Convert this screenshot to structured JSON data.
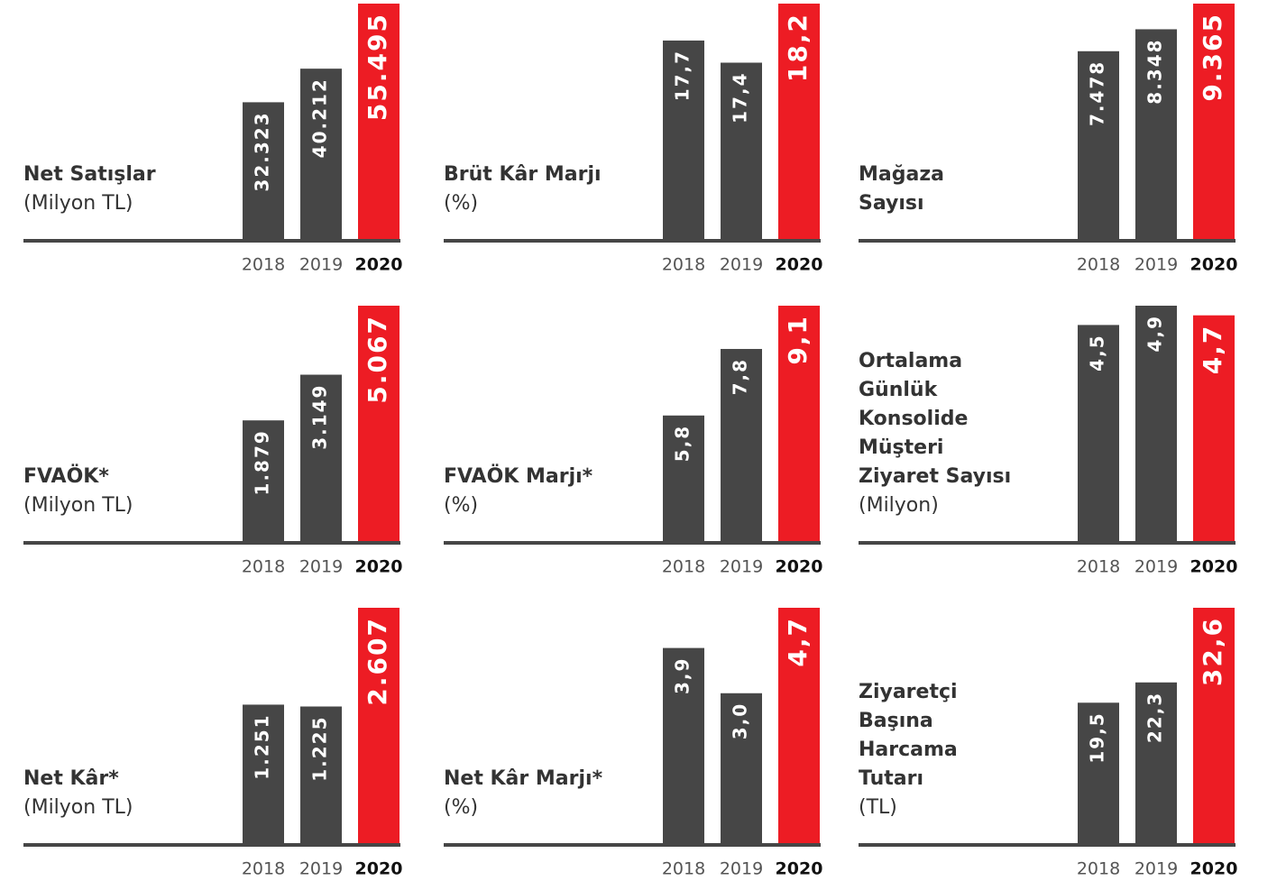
{
  "chart_data": [
    {
      "type": "bar",
      "title": [
        "Net Satışlar"
      ],
      "subtitle": "(Milyon TL)",
      "categories": [
        "2018",
        "2019",
        "2020"
      ],
      "values": [
        32323,
        40212,
        55495
      ],
      "value_labels": [
        "32.323",
        "40.212",
        "55.495"
      ],
      "colors": [
        "#464646",
        "#464646",
        "#ed1c24"
      ],
      "ylim": [
        0,
        55495
      ]
    },
    {
      "type": "bar",
      "title": [
        "Brüt Kâr Marjı"
      ],
      "subtitle": "(%)",
      "categories": [
        "2018",
        "2019",
        "2020"
      ],
      "values": [
        17.7,
        17.4,
        18.2
      ],
      "value_labels": [
        "17,7",
        "17,4",
        "18,2"
      ],
      "colors": [
        "#464646",
        "#464646",
        "#ed1c24"
      ],
      "ylim": [
        15,
        18.2
      ]
    },
    {
      "type": "bar",
      "title": [
        "Mağaza",
        "Sayısı"
      ],
      "categories": [
        "2018",
        "2019",
        "2020"
      ],
      "values": [
        7478,
        8348,
        9365
      ],
      "value_labels": [
        "7.478",
        "8.348",
        "9.365"
      ],
      "colors": [
        "#464646",
        "#464646",
        "#ed1c24"
      ],
      "ylim": [
        0,
        9365
      ]
    },
    {
      "type": "bar",
      "title": [
        "FVAÖK*"
      ],
      "subtitle": "(Milyon TL)",
      "categories": [
        "2018",
        "2019",
        "2020"
      ],
      "values": [
        1879,
        3149,
        5067
      ],
      "value_labels": [
        "1.879",
        "3.149",
        "5.067"
      ],
      "colors": [
        "#464646",
        "#464646",
        "#ed1c24"
      ],
      "ylim": [
        -1500,
        5067
      ]
    },
    {
      "type": "bar",
      "title": [
        "FVAÖK Marjı*"
      ],
      "subtitle": "(%)",
      "categories": [
        "2018",
        "2019",
        "2020"
      ],
      "values": [
        5.8,
        7.8,
        9.1
      ],
      "value_labels": [
        "5,8",
        "7,8",
        "9,1"
      ],
      "colors": [
        "#464646",
        "#464646",
        "#ed1c24"
      ],
      "ylim": [
        2,
        9.1
      ]
    },
    {
      "type": "bar",
      "title": [
        "Ortalama",
        "Günlük",
        "Konsolide",
        "Müşteri",
        "Ziyaret Sayısı"
      ],
      "subtitle": "(Milyon)",
      "categories": [
        "2018",
        "2019",
        "2020"
      ],
      "values": [
        4.5,
        4.9,
        4.7
      ],
      "value_labels": [
        "4,5",
        "4,9",
        "4,7"
      ],
      "colors": [
        "#464646",
        "#464646",
        "#ed1c24"
      ],
      "ylim": [
        0,
        4.9
      ]
    },
    {
      "type": "bar",
      "title": [
        "Net Kâr*"
      ],
      "subtitle": "(Milyon TL)",
      "categories": [
        "2018",
        "2019",
        "2020"
      ],
      "values": [
        1251,
        1225,
        2607
      ],
      "value_labels": [
        "1.251",
        "1.225",
        "2.607"
      ],
      "colors": [
        "#464646",
        "#464646",
        "#ed1c24"
      ],
      "ylim": [
        -700,
        2607
      ]
    },
    {
      "type": "bar",
      "title": [
        "Net Kâr Marjı*"
      ],
      "subtitle": "(%)",
      "categories": [
        "2018",
        "2019",
        "2020"
      ],
      "values": [
        3.9,
        3.0,
        4.7
      ],
      "value_labels": [
        "3,9",
        "3,0",
        "4,7"
      ],
      "colors": [
        "#464646",
        "#464646",
        "#ed1c24"
      ],
      "ylim": [
        0,
        4.7
      ]
    },
    {
      "type": "bar",
      "title": [
        "Ziyaretçi",
        "Başına",
        "Harcama",
        "Tutarı"
      ],
      "subtitle": "(TL)",
      "categories": [
        "2018",
        "2019",
        "2020"
      ],
      "values": [
        19.5,
        22.3,
        32.6
      ],
      "value_labels": [
        "19,5",
        "22,3",
        "32,6"
      ],
      "colors": [
        "#464646",
        "#464646",
        "#ed1c24"
      ],
      "ylim": [
        0,
        32.6
      ]
    }
  ]
}
